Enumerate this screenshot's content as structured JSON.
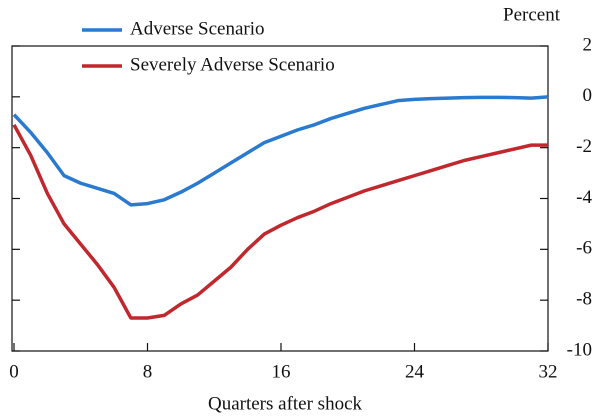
{
  "chart_data": {
    "type": "line",
    "y_label": "Percent",
    "x_label": "Quarters after shock",
    "x": [
      0,
      1,
      2,
      3,
      4,
      5,
      6,
      7,
      8,
      9,
      10,
      11,
      12,
      13,
      14,
      15,
      16,
      17,
      18,
      19,
      20,
      21,
      22,
      23,
      24,
      25,
      26,
      27,
      28,
      29,
      30,
      31,
      32
    ],
    "series": [
      {
        "name": "Adverse Scenario",
        "color": "#2a7ad0",
        "values": [
          -0.7,
          -1.4,
          -2.2,
          -3.1,
          -3.4,
          -3.6,
          -3.8,
          -4.25,
          -4.2,
          -4.05,
          -3.75,
          -3.4,
          -3.0,
          -2.6,
          -2.2,
          -1.8,
          -1.55,
          -1.3,
          -1.1,
          -0.85,
          -0.65,
          -0.45,
          -0.3,
          -0.15,
          -0.1,
          -0.07,
          -0.05,
          -0.03,
          -0.02,
          -0.02,
          -0.03,
          -0.05,
          0.0
        ]
      },
      {
        "name": "Severely Adverse Scenario",
        "color": "#c0282d",
        "values": [
          -1.1,
          -2.3,
          -3.8,
          -5.0,
          -5.8,
          -6.6,
          -7.5,
          -8.7,
          -8.7,
          -8.6,
          -8.15,
          -7.8,
          -7.25,
          -6.7,
          -6.0,
          -5.4,
          -5.05,
          -4.75,
          -4.5,
          -4.2,
          -3.95,
          -3.7,
          -3.5,
          -3.3,
          -3.1,
          -2.9,
          -2.7,
          -2.5,
          -2.35,
          -2.2,
          -2.05,
          -1.9,
          -1.9
        ]
      }
    ],
    "xlim": [
      0,
      32
    ],
    "xticks": [
      0,
      8,
      16,
      24,
      32
    ],
    "ylim": [
      -10,
      2
    ],
    "yticks": [
      -10,
      -8,
      -6,
      -4,
      -2,
      0,
      2
    ],
    "grid": false
  }
}
